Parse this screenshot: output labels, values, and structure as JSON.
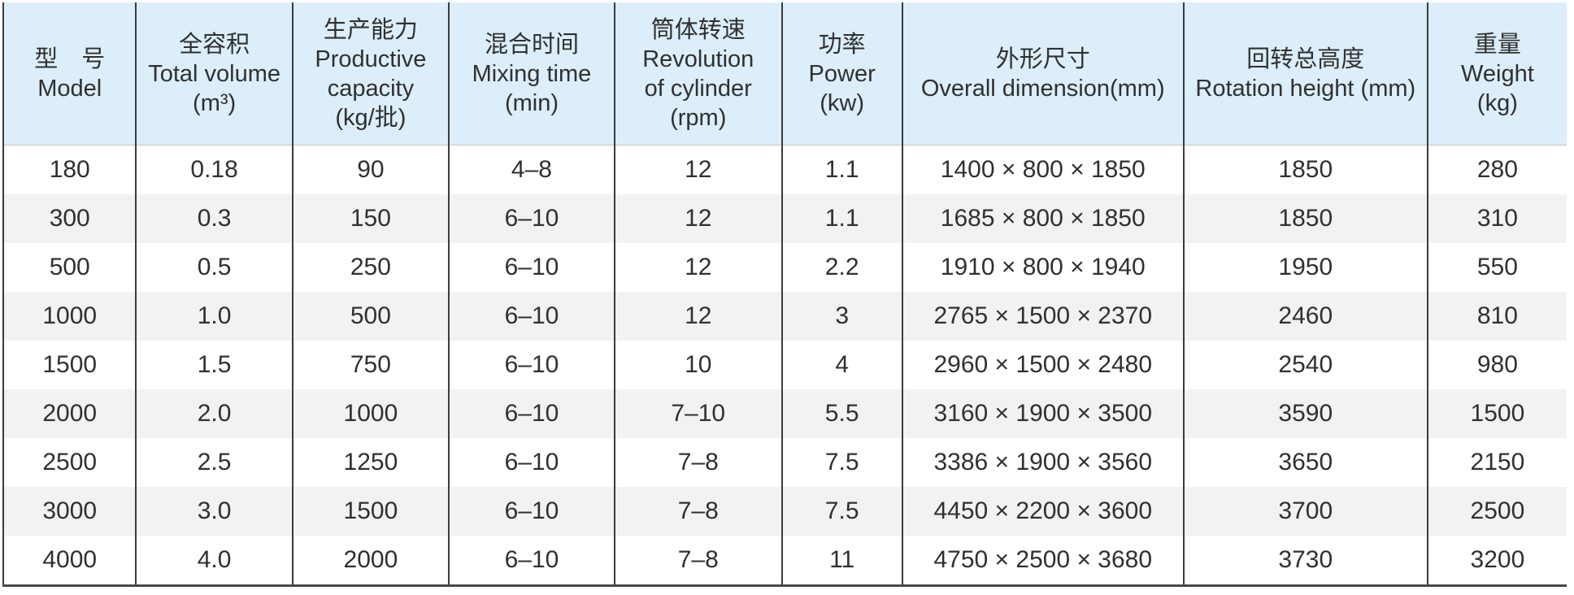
{
  "table": {
    "columns": [
      {
        "id": "model",
        "lines": [
          "型　号",
          "Model"
        ]
      },
      {
        "id": "total-volume",
        "lines": [
          "全容积",
          "Total volume",
          "(m³)"
        ]
      },
      {
        "id": "productive-capacity",
        "lines": [
          "生产能力",
          "Productive",
          "capacity",
          "(kg/批)"
        ]
      },
      {
        "id": "mixing-time",
        "lines": [
          "混合时间",
          "Mixing time",
          "(min)"
        ]
      },
      {
        "id": "revolution",
        "lines": [
          "筒体转速",
          "Revolution",
          "of cylinder",
          "(rpm)"
        ]
      },
      {
        "id": "power",
        "lines": [
          "功率",
          "Power",
          "(kw)"
        ]
      },
      {
        "id": "overall-dimension",
        "lines": [
          "外形尺寸",
          "Overall dimension(mm)"
        ]
      },
      {
        "id": "rotation-height",
        "lines": [
          "回转总高度",
          "Rotation height (mm)"
        ]
      },
      {
        "id": "weight",
        "lines": [
          "重量",
          "Weight",
          "(kg)"
        ]
      }
    ],
    "rows": [
      [
        "180",
        "0.18",
        "90",
        "4–8",
        "12",
        "1.1",
        "1400 × 800 × 1850",
        "1850",
        "280"
      ],
      [
        "300",
        "0.3",
        "150",
        "6–10",
        "12",
        "1.1",
        "1685 × 800 × 1850",
        "1850",
        "310"
      ],
      [
        "500",
        "0.5",
        "250",
        "6–10",
        "12",
        "2.2",
        "1910 × 800 × 1940",
        "1950",
        "550"
      ],
      [
        "1000",
        "1.0",
        "500",
        "6–10",
        "12",
        "3",
        "2765 × 1500 × 2370",
        "2460",
        "810"
      ],
      [
        "1500",
        "1.5",
        "750",
        "6–10",
        "10",
        "4",
        "2960 × 1500 × 2480",
        "2540",
        "980"
      ],
      [
        "2000",
        "2.0",
        "1000",
        "6–10",
        "7–10",
        "5.5",
        "3160 × 1900 × 3500",
        "3590",
        "1500"
      ],
      [
        "2500",
        "2.5",
        "1250",
        "6–10",
        "7–8",
        "7.5",
        "3386 × 1900 × 3560",
        "3650",
        "2150"
      ],
      [
        "3000",
        "3.0",
        "1500",
        "6–10",
        "7–8",
        "7.5",
        "4450 × 2200 × 3600",
        "3700",
        "2500"
      ],
      [
        "4000",
        "4.0",
        "2000",
        "6–10",
        "7–8",
        "11",
        "4750 × 2500 × 3680",
        "3730",
        "3200"
      ]
    ],
    "colors": {
      "header_bg": "#dceef9",
      "alt_row_bg": "#f2f2f2",
      "border": "#3c3c3c",
      "text": "#303030"
    }
  }
}
